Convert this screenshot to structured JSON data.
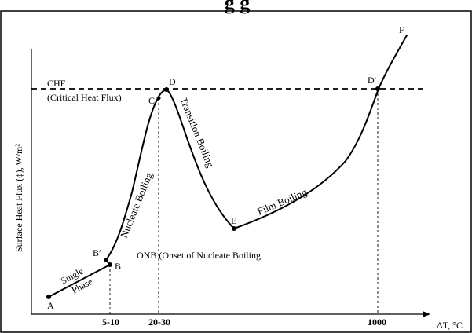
{
  "diagram": {
    "title_fragment": "g  g",
    "y_axis_label": "Surface Heat Flux (ϕ), W/m²",
    "x_axis_label": "ΔT, °C",
    "x_ticks": [
      "5-10",
      "20-30",
      "1000"
    ],
    "chf_line_label": "CHF",
    "chf_full_label": "(Critical Heat Flux)",
    "onb_label": "ONB (Onset of Nucleate Boiling",
    "points": {
      "A": "A",
      "B": "B",
      "B_prime": "B′",
      "C": "C",
      "D": "D",
      "D_prime": "D′",
      "E": "E",
      "F": "F"
    },
    "regions": {
      "single": "Single",
      "phase": "Phase",
      "nucleate": "Nucleate Boiling",
      "transition": "Transition Boiling",
      "film": "Film Boiling"
    }
  }
}
